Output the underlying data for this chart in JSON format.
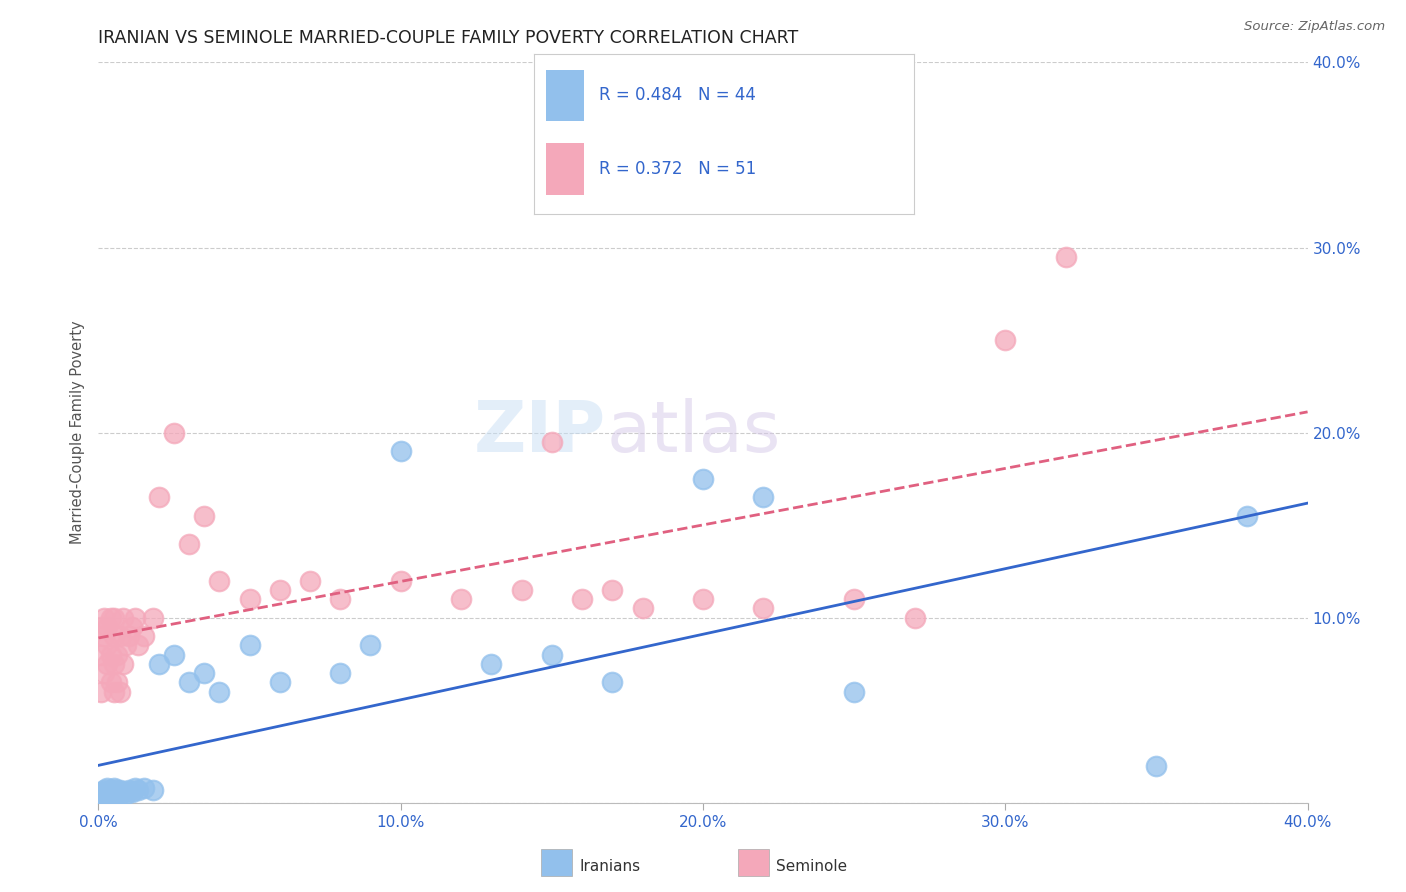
{
  "title": "IRANIAN VS SEMINOLE MARRIED-COUPLE FAMILY POVERTY CORRELATION CHART",
  "source": "Source: ZipAtlas.com",
  "ylabel": "Married-Couple Family Poverty",
  "xlim": [
    0.0,
    0.4
  ],
  "ylim": [
    0.0,
    0.4
  ],
  "xtick_vals": [
    0.0,
    0.1,
    0.2,
    0.3,
    0.4
  ],
  "xtick_labels": [
    "0.0%",
    "10.0%",
    "20.0%",
    "30.0%",
    "40.0%"
  ],
  "ytick_vals": [
    0.0,
    0.1,
    0.2,
    0.3,
    0.4
  ],
  "right_ytick_labels": [
    "",
    "10.0%",
    "20.0%",
    "30.0%",
    "40.0%"
  ],
  "iranians_color": "#92C0EC",
  "seminole_color": "#F4A8BA",
  "iranians_line_color": "#3366CC",
  "seminole_line_color": "#E06080",
  "legend_R_iranian": "0.484",
  "legend_N_iranian": "44",
  "legend_R_seminole": "0.372",
  "legend_N_seminole": "51",
  "background_color": "#ffffff",
  "iranians_x": [
    0.001,
    0.001,
    0.002,
    0.002,
    0.002,
    0.003,
    0.003,
    0.003,
    0.004,
    0.004,
    0.004,
    0.005,
    0.005,
    0.005,
    0.006,
    0.006,
    0.007,
    0.007,
    0.008,
    0.009,
    0.01,
    0.011,
    0.012,
    0.013,
    0.015,
    0.018,
    0.02,
    0.025,
    0.03,
    0.035,
    0.04,
    0.05,
    0.06,
    0.08,
    0.09,
    0.1,
    0.13,
    0.15,
    0.17,
    0.2,
    0.22,
    0.25,
    0.35,
    0.38
  ],
  "iranians_y": [
    0.003,
    0.006,
    0.004,
    0.007,
    0.005,
    0.003,
    0.006,
    0.008,
    0.004,
    0.007,
    0.005,
    0.003,
    0.006,
    0.008,
    0.005,
    0.007,
    0.004,
    0.007,
    0.006,
    0.005,
    0.007,
    0.006,
    0.008,
    0.007,
    0.008,
    0.007,
    0.075,
    0.08,
    0.065,
    0.07,
    0.06,
    0.085,
    0.065,
    0.07,
    0.085,
    0.19,
    0.075,
    0.08,
    0.065,
    0.175,
    0.165,
    0.06,
    0.02,
    0.155
  ],
  "seminole_x": [
    0.001,
    0.001,
    0.001,
    0.002,
    0.002,
    0.002,
    0.003,
    0.003,
    0.003,
    0.004,
    0.004,
    0.004,
    0.005,
    0.005,
    0.005,
    0.005,
    0.006,
    0.006,
    0.007,
    0.007,
    0.008,
    0.008,
    0.009,
    0.01,
    0.011,
    0.012,
    0.013,
    0.015,
    0.018,
    0.02,
    0.025,
    0.03,
    0.035,
    0.04,
    0.05,
    0.06,
    0.07,
    0.08,
    0.1,
    0.12,
    0.14,
    0.15,
    0.16,
    0.17,
    0.18,
    0.2,
    0.22,
    0.25,
    0.27,
    0.3,
    0.32
  ],
  "seminole_y": [
    0.06,
    0.08,
    0.095,
    0.07,
    0.09,
    0.1,
    0.075,
    0.085,
    0.095,
    0.065,
    0.08,
    0.1,
    0.06,
    0.075,
    0.09,
    0.1,
    0.065,
    0.08,
    0.06,
    0.09,
    0.075,
    0.1,
    0.085,
    0.09,
    0.095,
    0.1,
    0.085,
    0.09,
    0.1,
    0.165,
    0.2,
    0.14,
    0.155,
    0.12,
    0.11,
    0.115,
    0.12,
    0.11,
    0.12,
    0.11,
    0.115,
    0.195,
    0.11,
    0.115,
    0.105,
    0.11,
    0.105,
    0.11,
    0.1,
    0.25,
    0.295
  ]
}
